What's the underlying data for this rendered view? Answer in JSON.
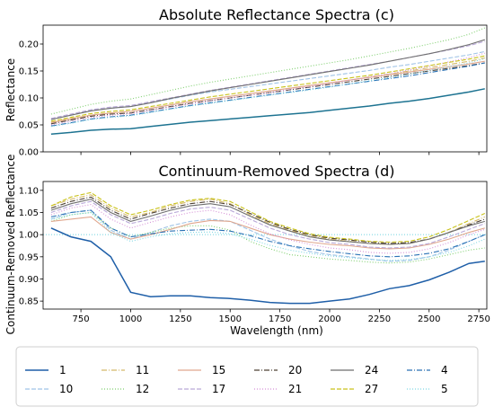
{
  "colors": {
    "1": "#1f5fa8",
    "10": "#9fc3e6",
    "11": "#d4b96b",
    "12": "#7fcf6f",
    "15": "#e0a78e",
    "17": "#b9a9d8",
    "20": "#4d4035",
    "21": "#d58fd6",
    "24": "#6e6e6e",
    "27": "#c9c21a",
    "4": "#2a72b5",
    "5": "#7fd7e3",
    "abs_1": "#1d7391",
    "ref_line": "#6fd3e0"
  },
  "chart_data": [
    {
      "type": "line",
      "title": "Absolute Reflectance Spectra (c)",
      "xlabel": "",
      "ylabel": "Reflectance",
      "xlim": [
        560,
        2790
      ],
      "ylim": [
        0.0,
        0.235
      ],
      "xticks": [
        750,
        1000,
        1250,
        1500,
        1750,
        2000,
        2250,
        2500,
        2750
      ],
      "yticks": [
        0.0,
        0.05,
        0.1,
        0.15,
        0.2
      ],
      "ytick_labels": [
        "0.00",
        "0.05",
        "0.10",
        "0.15",
        "0.20"
      ],
      "x": [
        600,
        700,
        800,
        900,
        1000,
        1100,
        1200,
        1300,
        1400,
        1500,
        1600,
        1700,
        1800,
        1900,
        2000,
        2100,
        2200,
        2300,
        2400,
        2500,
        2600,
        2700,
        2780
      ],
      "series": [
        {
          "name": "1",
          "values": [
            0.033,
            0.036,
            0.04,
            0.042,
            0.043,
            0.047,
            0.051,
            0.055,
            0.058,
            0.061,
            0.064,
            0.067,
            0.07,
            0.073,
            0.077,
            0.081,
            0.085,
            0.09,
            0.094,
            0.099,
            0.105,
            0.111,
            0.117
          ]
        },
        {
          "name": "10",
          "values": [
            0.06,
            0.068,
            0.076,
            0.081,
            0.084,
            0.091,
            0.098,
            0.105,
            0.111,
            0.116,
            0.121,
            0.126,
            0.131,
            0.136,
            0.141,
            0.146,
            0.151,
            0.157,
            0.162,
            0.168,
            0.174,
            0.18,
            0.186
          ]
        },
        {
          "name": "11",
          "values": [
            0.055,
            0.062,
            0.068,
            0.072,
            0.075,
            0.081,
            0.087,
            0.093,
            0.098,
            0.103,
            0.108,
            0.113,
            0.118,
            0.123,
            0.128,
            0.133,
            0.139,
            0.144,
            0.15,
            0.156,
            0.162,
            0.168,
            0.174
          ]
        },
        {
          "name": "12",
          "values": [
            0.07,
            0.079,
            0.088,
            0.094,
            0.098,
            0.106,
            0.114,
            0.122,
            0.129,
            0.135,
            0.141,
            0.147,
            0.153,
            0.159,
            0.165,
            0.171,
            0.178,
            0.185,
            0.192,
            0.2,
            0.208,
            0.218,
            0.23
          ]
        },
        {
          "name": "15",
          "values": [
            0.054,
            0.061,
            0.068,
            0.072,
            0.075,
            0.081,
            0.087,
            0.093,
            0.098,
            0.103,
            0.108,
            0.113,
            0.118,
            0.123,
            0.128,
            0.133,
            0.138,
            0.143,
            0.148,
            0.153,
            0.158,
            0.163,
            0.168
          ]
        },
        {
          "name": "17",
          "values": [
            0.062,
            0.07,
            0.078,
            0.083,
            0.086,
            0.093,
            0.1,
            0.107,
            0.114,
            0.12,
            0.126,
            0.132,
            0.138,
            0.144,
            0.15,
            0.156,
            0.162,
            0.168,
            0.175,
            0.182,
            0.189,
            0.197,
            0.205
          ]
        },
        {
          "name": "20",
          "values": [
            0.052,
            0.059,
            0.066,
            0.07,
            0.072,
            0.078,
            0.084,
            0.09,
            0.095,
            0.1,
            0.105,
            0.11,
            0.115,
            0.12,
            0.125,
            0.13,
            0.135,
            0.14,
            0.145,
            0.15,
            0.155,
            0.16,
            0.165
          ]
        },
        {
          "name": "21",
          "values": [
            0.05,
            0.057,
            0.064,
            0.068,
            0.071,
            0.077,
            0.083,
            0.089,
            0.095,
            0.1,
            0.105,
            0.11,
            0.116,
            0.121,
            0.127,
            0.133,
            0.139,
            0.145,
            0.152,
            0.159,
            0.167,
            0.175,
            0.183
          ]
        },
        {
          "name": "24",
          "values": [
            0.06,
            0.068,
            0.076,
            0.081,
            0.084,
            0.091,
            0.099,
            0.106,
            0.113,
            0.119,
            0.125,
            0.131,
            0.137,
            0.143,
            0.149,
            0.155,
            0.161,
            0.168,
            0.175,
            0.182,
            0.19,
            0.199,
            0.208
          ]
        },
        {
          "name": "27",
          "values": [
            0.057,
            0.064,
            0.071,
            0.075,
            0.078,
            0.084,
            0.09,
            0.096,
            0.102,
            0.107,
            0.112,
            0.117,
            0.122,
            0.127,
            0.132,
            0.137,
            0.142,
            0.148,
            0.154,
            0.16,
            0.166,
            0.172,
            0.178
          ]
        },
        {
          "name": "4",
          "values": [
            0.048,
            0.054,
            0.061,
            0.065,
            0.068,
            0.074,
            0.08,
            0.086,
            0.091,
            0.096,
            0.101,
            0.106,
            0.111,
            0.116,
            0.121,
            0.126,
            0.131,
            0.136,
            0.141,
            0.147,
            0.153,
            0.159,
            0.165
          ]
        },
        {
          "name": "5",
          "values": [
            0.047,
            0.053,
            0.06,
            0.064,
            0.067,
            0.073,
            0.079,
            0.085,
            0.09,
            0.095,
            0.1,
            0.105,
            0.11,
            0.115,
            0.12,
            0.126,
            0.132,
            0.138,
            0.144,
            0.151,
            0.158,
            0.165,
            0.173
          ]
        }
      ]
    },
    {
      "type": "line",
      "title": "Continuum-Removed Spectra (d)",
      "xlabel": "Wavelength (nm)",
      "ylabel": "Continuum-Removed Reflectance",
      "xlim": [
        560,
        2790
      ],
      "ylim": [
        0.832,
        1.12
      ],
      "xticks": [
        750,
        1000,
        1250,
        1500,
        1750,
        2000,
        2250,
        2500,
        2750
      ],
      "yticks": [
        0.85,
        0.9,
        0.95,
        1.0,
        1.05,
        1.1
      ],
      "ytick_labels": [
        "0.85",
        "0.90",
        "0.95",
        "1.00",
        "1.05",
        "1.10"
      ],
      "reference_line": 1.0,
      "x": [
        600,
        700,
        800,
        900,
        1000,
        1100,
        1200,
        1300,
        1400,
        1500,
        1600,
        1700,
        1800,
        1900,
        2000,
        2100,
        2200,
        2300,
        2400,
        2500,
        2600,
        2700,
        2780
      ],
      "series": [
        {
          "name": "1",
          "values": [
            1.015,
            0.995,
            0.985,
            0.95,
            0.87,
            0.86,
            0.862,
            0.862,
            0.858,
            0.856,
            0.852,
            0.847,
            0.845,
            0.845,
            0.85,
            0.855,
            0.865,
            0.878,
            0.885,
            0.898,
            0.915,
            0.935,
            0.94
          ]
        },
        {
          "name": "10",
          "values": [
            1.035,
            1.05,
            1.055,
            1.01,
            0.99,
            1.005,
            1.02,
            1.03,
            1.035,
            1.03,
            1.01,
            0.99,
            0.975,
            0.962,
            0.955,
            0.95,
            0.945,
            0.94,
            0.942,
            0.95,
            0.965,
            0.985,
            1.0
          ]
        },
        {
          "name": "11",
          "values": [
            1.065,
            1.08,
            1.09,
            1.06,
            1.04,
            1.05,
            1.065,
            1.075,
            1.08,
            1.07,
            1.045,
            1.025,
            1.01,
            0.998,
            0.99,
            0.985,
            0.98,
            0.978,
            0.98,
            0.99,
            1.005,
            1.025,
            1.04
          ]
        },
        {
          "name": "12",
          "values": [
            1.03,
            1.045,
            1.05,
            1.015,
            0.995,
            1.005,
            1.015,
            1.02,
            1.02,
            1.01,
            0.985,
            0.968,
            0.955,
            0.95,
            0.945,
            0.942,
            0.938,
            0.936,
            0.938,
            0.945,
            0.955,
            0.965,
            0.97
          ]
        },
        {
          "name": "15",
          "values": [
            1.03,
            1.035,
            1.04,
            1.005,
            0.99,
            1.0,
            1.012,
            1.025,
            1.032,
            1.03,
            1.015,
            1.0,
            0.99,
            0.983,
            0.978,
            0.975,
            0.97,
            0.968,
            0.97,
            0.978,
            0.99,
            1.005,
            1.015
          ]
        },
        {
          "name": "17",
          "values": [
            1.05,
            1.065,
            1.075,
            1.045,
            1.025,
            1.035,
            1.048,
            1.058,
            1.062,
            1.055,
            1.035,
            1.015,
            1.0,
            0.99,
            0.982,
            0.978,
            0.972,
            0.97,
            0.972,
            0.98,
            0.995,
            1.012,
            1.025
          ]
        },
        {
          "name": "20",
          "values": [
            1.06,
            1.075,
            1.085,
            1.055,
            1.035,
            1.048,
            1.06,
            1.07,
            1.075,
            1.068,
            1.048,
            1.028,
            1.012,
            1.0,
            0.992,
            0.988,
            0.983,
            0.98,
            0.982,
            0.99,
            1.005,
            1.022,
            1.035
          ]
        },
        {
          "name": "21",
          "values": [
            1.045,
            1.06,
            1.068,
            1.035,
            1.015,
            1.028,
            1.04,
            1.05,
            1.055,
            1.045,
            1.022,
            1.002,
            0.988,
            0.978,
            0.97,
            0.966,
            0.96,
            0.958,
            0.96,
            0.968,
            0.982,
            1.0,
            1.012
          ]
        },
        {
          "name": "24",
          "values": [
            1.055,
            1.07,
            1.08,
            1.05,
            1.03,
            1.042,
            1.055,
            1.065,
            1.07,
            1.063,
            1.042,
            1.022,
            1.008,
            0.995,
            0.988,
            0.984,
            0.98,
            0.978,
            0.98,
            0.99,
            1.005,
            1.02,
            1.03
          ]
        },
        {
          "name": "27",
          "values": [
            1.065,
            1.085,
            1.095,
            1.065,
            1.045,
            1.055,
            1.068,
            1.078,
            1.082,
            1.075,
            1.052,
            1.03,
            1.015,
            1.002,
            0.994,
            0.99,
            0.985,
            0.983,
            0.985,
            0.995,
            1.012,
            1.032,
            1.048
          ]
        },
        {
          "name": "4",
          "values": [
            1.04,
            1.05,
            1.055,
            1.015,
            0.995,
            1.002,
            1.008,
            1.01,
            1.012,
            1.008,
            0.998,
            0.985,
            0.975,
            0.968,
            0.962,
            0.957,
            0.952,
            0.95,
            0.952,
            0.958,
            0.968,
            0.985,
            1.0
          ]
        },
        {
          "name": "5",
          "values": [
            1.035,
            1.045,
            1.05,
            1.005,
            0.985,
            0.995,
            1.002,
            1.005,
            1.006,
            1.002,
            0.99,
            0.976,
            0.965,
            0.958,
            0.952,
            0.948,
            0.944,
            0.942,
            0.944,
            0.95,
            0.96,
            0.975,
            0.99
          ]
        }
      ]
    }
  ],
  "legend": {
    "placement": "bottom",
    "columns": 6,
    "items": [
      "1",
      "10",
      "11",
      "12",
      "15",
      "17",
      "20",
      "21",
      "24",
      "27",
      "4",
      "5"
    ],
    "order_grid": [
      [
        "1",
        "10"
      ],
      [
        "11",
        "12"
      ],
      [
        "15",
        "17"
      ],
      [
        "20",
        "21"
      ],
      [
        "24",
        "27"
      ],
      [
        "4",
        "5"
      ]
    ]
  }
}
